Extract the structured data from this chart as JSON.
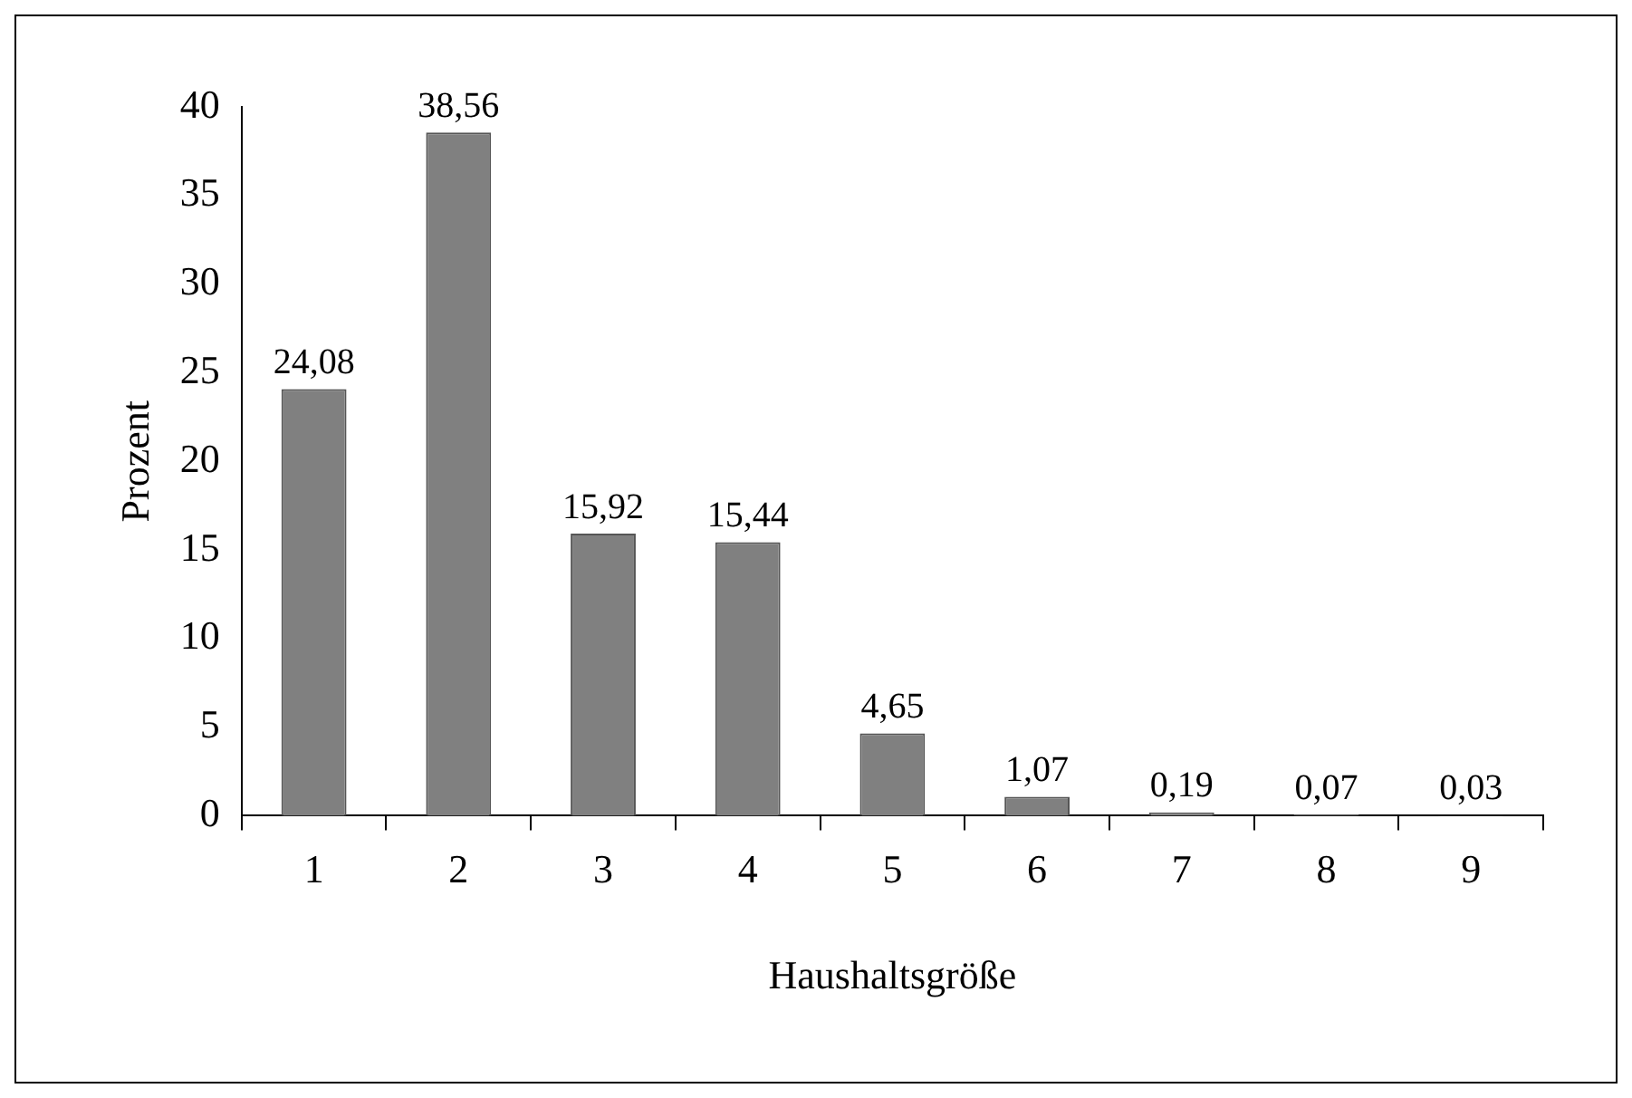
{
  "chart_data": {
    "type": "bar",
    "xlabel": "Haushaltsgröße",
    "ylabel": "Prozent",
    "categories": [
      "1",
      "2",
      "3",
      "4",
      "5",
      "6",
      "7",
      "8",
      "9"
    ],
    "values": [
      24.08,
      38.56,
      15.92,
      15.44,
      4.65,
      1.07,
      0.19,
      0.07,
      0.03
    ],
    "value_labels": [
      "24,08",
      "38,56",
      "15,92",
      "15,44",
      "4,65",
      "1,07",
      "0,19",
      "0,07",
      "0,03"
    ],
    "color": "#808080",
    "ylim": [
      0,
      40
    ],
    "yticks": [
      0,
      5,
      10,
      15,
      20,
      25,
      30,
      35,
      40
    ],
    "grid": false,
    "legend": false
  }
}
